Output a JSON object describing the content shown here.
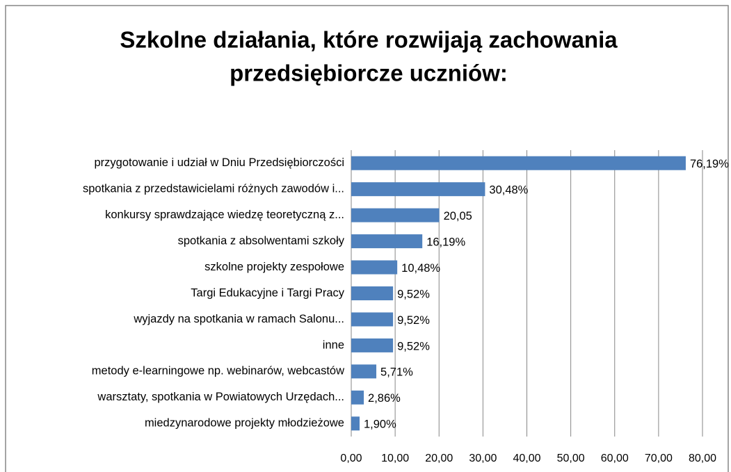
{
  "chart_data": {
    "type": "hbar",
    "title": [
      "Szkolne działania, które rozwijają zachowania",
      "przedsiębiorcze uczniów:"
    ],
    "categories": [
      "przygotowanie i udział w Dniu Przedsiębiorczości",
      "spotkania z przedstawicielami różnych zawodów i...",
      "konkursy sprawdzające wiedzę teoretyczną z...",
      "spotkania z absolwentami szkoły",
      "szkolne projekty zespołowe",
      "Targi Edukacyjne i Targi Pracy",
      "wyjazdy na spotkania w ramach Salonu...",
      "inne",
      "metody e-learningowe np. webinarów, webcastów",
      "warsztaty, spotkania w Powiatowych Urzędach...",
      "miedzynarodowe projekty młodzieżowe"
    ],
    "values": [
      76.19,
      30.48,
      20.05,
      16.19,
      10.48,
      9.52,
      9.52,
      9.52,
      5.71,
      2.86,
      1.9
    ],
    "value_labels": [
      "76,19%",
      "30,48%",
      "20,05",
      "16,19%",
      "10,48%",
      "9,52%",
      "9,52%",
      "9,52%",
      "5,71%",
      "2,86%",
      "1,90%"
    ],
    "color": "#4f81bd",
    "xlim": [
      0,
      80
    ],
    "xticks": [
      {
        "value": 0,
        "label": "0,00"
      },
      {
        "value": 10,
        "label": "10,00"
      },
      {
        "value": 20,
        "label": "20,00"
      },
      {
        "value": 30,
        "label": "30,00"
      },
      {
        "value": 40,
        "label": "40,00"
      },
      {
        "value": 50,
        "label": "50,00"
      },
      {
        "value": 60,
        "label": "60,00"
      },
      {
        "value": 70,
        "label": "70,00"
      },
      {
        "value": 80,
        "label": "80,00"
      }
    ],
    "grid": true
  }
}
